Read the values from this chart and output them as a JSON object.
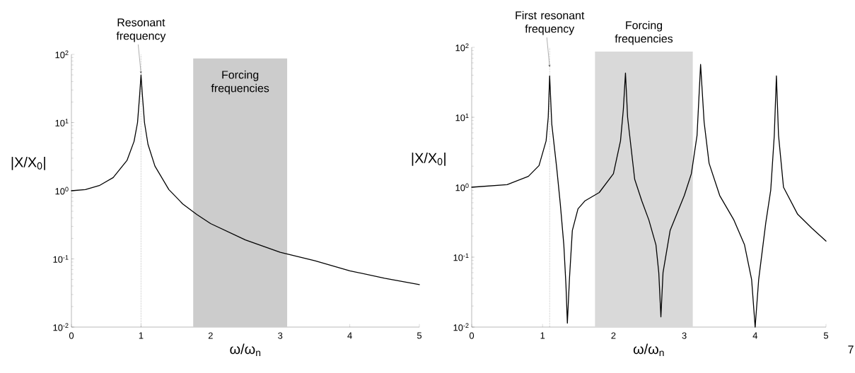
{
  "chart_data": [
    {
      "type": "line",
      "xlabel": "ω/ω$_{n}$",
      "ylabel": "|X/X$_{0}$|",
      "log": "y",
      "marker": "none",
      "line_style": "solid",
      "xlim": [
        0,
        5
      ],
      "ylim": [
        0.01,
        100
      ],
      "xticks": [
        0,
        1,
        2,
        3,
        4,
        5
      ],
      "yticks": [
        {
          "value": 0.01,
          "label": "10$^{-2}$"
        },
        {
          "value": 0.1,
          "label": "10$^{-1}$"
        },
        {
          "value": 1,
          "label": "10$^{0}$"
        },
        {
          "value": 10,
          "label": "10$^{1}$"
        },
        {
          "value": 100,
          "label": "10$^{2}$"
        }
      ],
      "ref_lines": [
        {
          "axis": "x",
          "value": 1,
          "label": "Resonant frequency",
          "line_style": "dotted",
          "color": "#000000"
        }
      ],
      "bands": [
        {
          "axis": "x",
          "from": 1.75,
          "to": 3.1,
          "label": "Forcing frequencies",
          "color": "#cccccc"
        }
      ],
      "series": [
        {
          "color": "#000000",
          "x": [
            0,
            0.2,
            0.4,
            0.6,
            0.8,
            0.9,
            0.95,
            0.98,
            1.0,
            1.02,
            1.05,
            1.1,
            1.2,
            1.4,
            1.6,
            1.8,
            2.0,
            2.5,
            3.0,
            3.5,
            4.0,
            4.5,
            5.0
          ],
          "values": [
            1.0,
            1.04,
            1.19,
            1.56,
            2.8,
            5.3,
            10,
            25,
            50,
            25,
            10,
            4.8,
            2.3,
            1.04,
            0.64,
            0.45,
            0.33,
            0.19,
            0.125,
            0.094,
            0.067,
            0.052,
            0.042
          ]
        }
      ]
    },
    {
      "type": "line",
      "xlabel": "ω/ω$_{n}$",
      "ylabel": "|X/X$_{0}$|",
      "log": "y",
      "marker": "none",
      "line_style": "solid",
      "xlim": [
        0,
        5
      ],
      "ylim": [
        0.01,
        100
      ],
      "xticks": [
        0,
        1,
        2,
        3,
        4,
        5
      ],
      "yticks": [
        {
          "value": 0.01,
          "label": "10$^{-2}$"
        },
        {
          "value": 0.1,
          "label": "10$^{-1}$"
        },
        {
          "value": 1,
          "label": "10$^{0}$"
        },
        {
          "value": 10,
          "label": "10$^{1}$"
        },
        {
          "value": 100,
          "label": "10$^{2}$"
        }
      ],
      "ref_lines": [
        {
          "axis": "x",
          "value": 1.1,
          "label": "First resonant frequency",
          "line_style": "dotted",
          "color": "#000000"
        }
      ],
      "bands": [
        {
          "axis": "x",
          "from": 1.74,
          "to": 3.12,
          "label": "Forcing frequencies",
          "color": "#d9d9d9"
        }
      ],
      "annotations": [
        "7"
      ],
      "series": [
        {
          "color": "#000000",
          "x": [
            0,
            0.5,
            0.8,
            0.95,
            1.05,
            1.08,
            1.1,
            1.13,
            1.2,
            1.25,
            1.3,
            1.33,
            1.35,
            1.38,
            1.42,
            1.5,
            1.6,
            1.8,
            2.0,
            2.1,
            2.14,
            2.17,
            2.2,
            2.3,
            2.4,
            2.5,
            2.6,
            2.64,
            2.67,
            2.7,
            2.8,
            3.0,
            3.1,
            3.18,
            3.23,
            3.28,
            3.35,
            3.5,
            3.7,
            3.85,
            3.95,
            4.0,
            4.05,
            4.15,
            4.22,
            4.27,
            4.3,
            4.33,
            4.4,
            4.6,
            4.8,
            5.0
          ],
          "values": [
            1.0,
            1.09,
            1.43,
            2.04,
            4.6,
            10,
            39,
            8,
            1.87,
            0.58,
            0.15,
            0.04,
            0.0114,
            0.05,
            0.24,
            0.49,
            0.64,
            0.84,
            1.56,
            4.6,
            13,
            43,
            10,
            1.3,
            0.64,
            0.34,
            0.15,
            0.06,
            0.014,
            0.06,
            0.24,
            0.76,
            1.56,
            5.5,
            57,
            8.5,
            2.2,
            0.76,
            0.34,
            0.15,
            0.048,
            0.01,
            0.048,
            0.31,
            0.91,
            5.5,
            39,
            5.5,
            1.0,
            0.41,
            0.26,
            0.17
          ]
        }
      ]
    }
  ]
}
